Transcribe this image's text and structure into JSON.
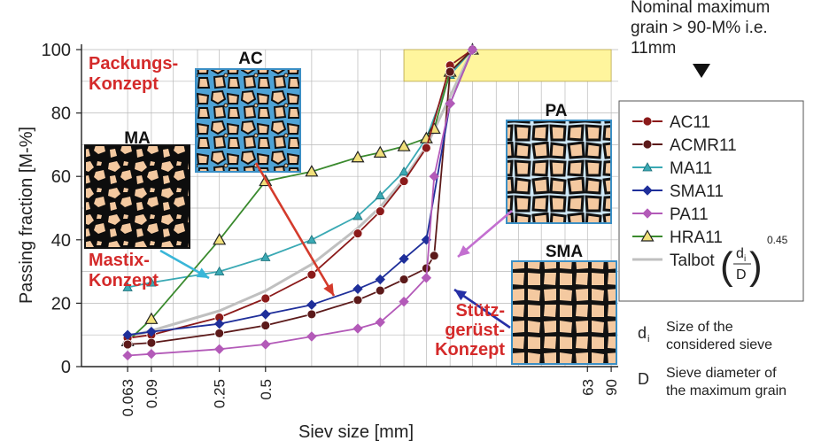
{
  "chart_data": {
    "type": "line",
    "xscale": "log",
    "xlabel": "Siev size [mm]",
    "ylabel": "Passing fraction [M-%]",
    "ylim": [
      0,
      100
    ],
    "yticks": [
      0,
      20,
      40,
      60,
      80,
      100
    ],
    "xtick_labels": [
      {
        "x": 0.063,
        "label": "0.063"
      },
      {
        "x": 0.09,
        "label": "0.09"
      },
      {
        "x": 0.25,
        "label": "0.25"
      },
      {
        "x": 0.5,
        "label": "0.5"
      },
      {
        "x": 63,
        "label": "63"
      },
      {
        "x": 90,
        "label": "90"
      }
    ],
    "grid": true,
    "legend_position": "right",
    "series": [
      {
        "name": "AC11",
        "color": "#8b1a1a",
        "marker": "circle",
        "points": [
          [
            0.063,
            9
          ],
          [
            0.09,
            10
          ],
          [
            0.25,
            15.5
          ],
          [
            0.5,
            21.5
          ],
          [
            1,
            29
          ],
          [
            2,
            42
          ],
          [
            2.8,
            49
          ],
          [
            4,
            58.5
          ],
          [
            5.6,
            69
          ],
          [
            8,
            95
          ],
          [
            11.2,
            100
          ]
        ]
      },
      {
        "name": "ACMR11",
        "color": "#5c1a1a",
        "marker": "circle",
        "points": [
          [
            0.063,
            7
          ],
          [
            0.09,
            7.5
          ],
          [
            0.25,
            10.5
          ],
          [
            0.5,
            13
          ],
          [
            1,
            16.5
          ],
          [
            2,
            21
          ],
          [
            2.8,
            24
          ],
          [
            4,
            27.5
          ],
          [
            5.6,
            31
          ],
          [
            6.3,
            35
          ],
          [
            8,
            93
          ],
          [
            11.2,
            100
          ]
        ]
      },
      {
        "name": "MA11",
        "color": "#3aa9b4",
        "marker": "triangle",
        "points": [
          [
            0.063,
            25
          ],
          [
            0.09,
            26.5
          ],
          [
            0.25,
            30
          ],
          [
            0.5,
            34.5
          ],
          [
            1,
            40
          ],
          [
            2,
            47.5
          ],
          [
            2.8,
            54
          ],
          [
            4,
            61.5
          ],
          [
            5.6,
            72
          ],
          [
            8,
            92
          ],
          [
            11.2,
            100
          ]
        ]
      },
      {
        "name": "SMA11",
        "color": "#1f2f9a",
        "marker": "diamond",
        "points": [
          [
            0.063,
            10
          ],
          [
            0.09,
            11
          ],
          [
            0.25,
            13.5
          ],
          [
            0.5,
            16.5
          ],
          [
            1,
            19.5
          ],
          [
            2,
            24.5
          ],
          [
            2.8,
            27.5
          ],
          [
            4,
            34
          ],
          [
            5.6,
            40
          ],
          [
            8,
            83
          ],
          [
            11.2,
            100
          ]
        ]
      },
      {
        "name": "PA11",
        "color": "#b35ab8",
        "marker": "diamond",
        "points": [
          [
            0.063,
            3.5
          ],
          [
            0.09,
            4
          ],
          [
            0.25,
            5.5
          ],
          [
            0.5,
            7
          ],
          [
            1,
            9.5
          ],
          [
            2,
            12
          ],
          [
            2.8,
            14
          ],
          [
            4,
            20.5
          ],
          [
            5.6,
            28
          ],
          [
            6.3,
            60
          ],
          [
            8,
            83
          ],
          [
            11.2,
            100
          ]
        ]
      },
      {
        "name": "HRA11",
        "color": "#3a8a2e",
        "marker": "triangle-filled",
        "points": [
          [
            0.063,
            8
          ],
          [
            0.09,
            15
          ],
          [
            0.25,
            40
          ],
          [
            0.5,
            58.5
          ],
          [
            1,
            61.5
          ],
          [
            2,
            66
          ],
          [
            2.8,
            67.5
          ],
          [
            4,
            69.5
          ],
          [
            5.6,
            72
          ],
          [
            6.3,
            75
          ],
          [
            8,
            93
          ],
          [
            11.2,
            100
          ]
        ]
      },
      {
        "name": "Talbot",
        "color": "#c0c0c0",
        "marker": "none",
        "points": [
          [
            0.063,
            9.5
          ],
          [
            0.09,
            11.3
          ],
          [
            0.25,
            17.6
          ],
          [
            0.5,
            23.9
          ],
          [
            1,
            32.3
          ],
          [
            2,
            43.7
          ],
          [
            2.8,
            50.3
          ],
          [
            4,
            59.2
          ],
          [
            5.6,
            69.4
          ],
          [
            8,
            85.3
          ],
          [
            11.2,
            100
          ]
        ]
      }
    ],
    "nominal_max_band": {
      "x_from": 4,
      "x_to": 90,
      "y_from": 90,
      "y_to": 100,
      "color": "#fff59d"
    },
    "annotations": {
      "nominal_max": "Nominal maximum grain > 90-M% i.e. 11mm",
      "packungs": "Packungs-\nKonzept",
      "mastix": "Mastix-\nKonzept",
      "stuetz": "Stütz-\ngerüst-\nKonzept",
      "ma_image": "MA",
      "ac_image": "AC",
      "pa_image": "PA",
      "sma_image": "SMA"
    },
    "talbot_formula": {
      "prefix": "Talbot",
      "numerator": "d",
      "numerator_sub": "i",
      "denominator": "D",
      "exponent": "0.45"
    },
    "notes": [
      {
        "symbol": "d",
        "symbol_sub": "i",
        "text": "Size of the\nconsidered sieve"
      },
      {
        "symbol": "D",
        "symbol_sub": "",
        "text": "Sieve diameter of\nthe maximum grain"
      }
    ]
  }
}
